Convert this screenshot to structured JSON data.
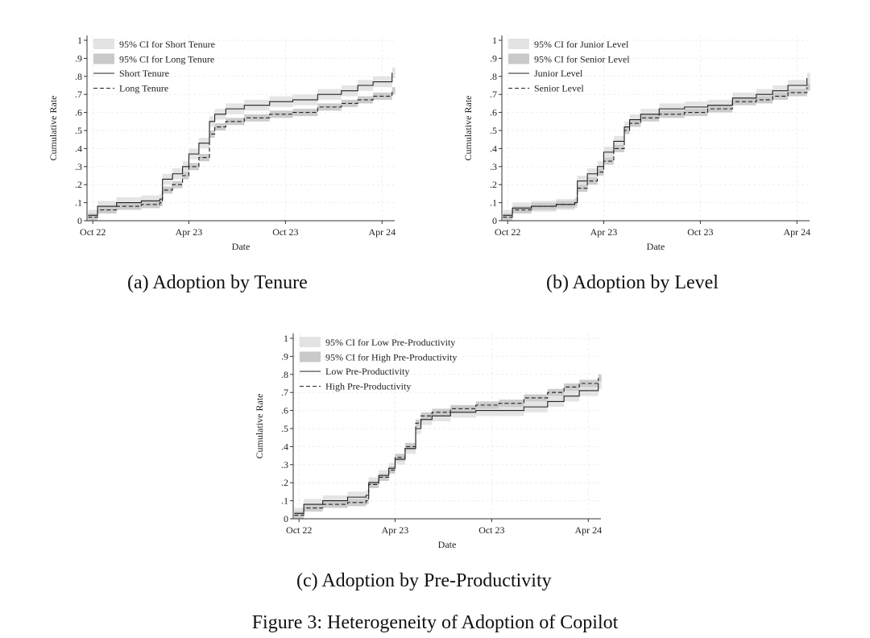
{
  "figure": {
    "title": "Figure 3: Heterogeneity of Adoption of Copilot"
  },
  "chart_data": [
    {
      "id": "a",
      "type": "line",
      "caption": "(a) Adoption by Tenure",
      "xlabel": "Date",
      "ylabel": "Cumulative Rate",
      "xticks": [
        "Oct 22",
        "Apr 23",
        "Oct 23",
        "Apr 24"
      ],
      "yticks": [
        "0",
        ".1",
        ".2",
        ".3",
        ".4",
        ".5",
        ".6",
        ".7",
        ".8",
        ".9",
        "1"
      ],
      "ylim": [
        0,
        1
      ],
      "xlim": [
        "2022-09-20",
        "2024-04-25"
      ],
      "grid": true,
      "legend_position": "top-left",
      "x": [
        "2022-09-22",
        "2022-10-10",
        "2022-11-15",
        "2023-01-01",
        "2023-02-05",
        "2023-02-10",
        "2023-03-01",
        "2023-03-20",
        "2023-04-01",
        "2023-04-20",
        "2023-05-10",
        "2023-05-20",
        "2023-06-10",
        "2023-07-15",
        "2023-09-01",
        "2023-10-15",
        "2023-12-01",
        "2024-01-15",
        "2024-02-15",
        "2024-03-15",
        "2024-04-20"
      ],
      "series": [
        {
          "name": "Short Tenure",
          "style": "solid",
          "values": [
            0.03,
            0.08,
            0.1,
            0.11,
            0.12,
            0.23,
            0.26,
            0.3,
            0.37,
            0.43,
            0.55,
            0.59,
            0.62,
            0.64,
            0.66,
            0.67,
            0.7,
            0.72,
            0.75,
            0.77,
            0.82
          ]
        },
        {
          "name": "Long Tenure",
          "style": "dashed",
          "values": [
            0.02,
            0.06,
            0.08,
            0.09,
            0.1,
            0.17,
            0.2,
            0.25,
            0.3,
            0.35,
            0.48,
            0.52,
            0.55,
            0.57,
            0.59,
            0.6,
            0.63,
            0.65,
            0.67,
            0.69,
            0.72
          ]
        }
      ],
      "ci": [
        {
          "name": "95% CI for Short Tenure",
          "fill": "#e3e3e3",
          "halfwidth": 0.03
        },
        {
          "name": "95% CI for Long Tenure",
          "fill": "#c9c9c9",
          "halfwidth": 0.02
        }
      ]
    },
    {
      "id": "b",
      "type": "line",
      "caption": "(b) Adoption by Level",
      "xlabel": "Date",
      "ylabel": "Cumulative Rate",
      "xticks": [
        "Oct 22",
        "Apr 23",
        "Oct 23",
        "Apr 24"
      ],
      "yticks": [
        "0",
        ".1",
        ".2",
        ".3",
        ".4",
        ".5",
        ".6",
        ".7",
        ".8",
        ".9",
        "1"
      ],
      "ylim": [
        0,
        1
      ],
      "xlim": [
        "2022-09-20",
        "2024-04-25"
      ],
      "grid": true,
      "legend_position": "top-left",
      "x": [
        "2022-09-22",
        "2022-10-10",
        "2022-11-15",
        "2023-01-01",
        "2023-02-05",
        "2023-02-10",
        "2023-03-01",
        "2023-03-20",
        "2023-04-01",
        "2023-04-20",
        "2023-05-10",
        "2023-05-20",
        "2023-06-10",
        "2023-07-15",
        "2023-09-01",
        "2023-10-15",
        "2023-12-01",
        "2024-01-15",
        "2024-02-15",
        "2024-03-15",
        "2024-04-20"
      ],
      "series": [
        {
          "name": "Junior Level",
          "style": "solid",
          "values": [
            0.03,
            0.07,
            0.08,
            0.09,
            0.1,
            0.22,
            0.26,
            0.3,
            0.38,
            0.44,
            0.52,
            0.56,
            0.59,
            0.62,
            0.63,
            0.64,
            0.68,
            0.7,
            0.72,
            0.75,
            0.79
          ]
        },
        {
          "name": "Senior Level",
          "style": "dashed",
          "values": [
            0.02,
            0.06,
            0.08,
            0.09,
            0.1,
            0.18,
            0.22,
            0.27,
            0.33,
            0.4,
            0.5,
            0.54,
            0.57,
            0.59,
            0.6,
            0.62,
            0.66,
            0.67,
            0.69,
            0.71,
            0.74
          ]
        }
      ],
      "ci": [
        {
          "name": "95% CI for Junior Level",
          "fill": "#e3e3e3",
          "halfwidth": 0.03
        },
        {
          "name": "95% CI for Senior Level",
          "fill": "#c9c9c9",
          "halfwidth": 0.02
        }
      ]
    },
    {
      "id": "c",
      "type": "line",
      "caption": "(c) Adoption by Pre-Productivity",
      "xlabel": "Date",
      "ylabel": "Cumulative Rate",
      "xticks": [
        "Oct 22",
        "Apr 23",
        "Oct 23",
        "Apr 24"
      ],
      "yticks": [
        "0",
        ".1",
        ".2",
        ".3",
        ".4",
        ".5",
        ".6",
        ".7",
        ".8",
        ".9",
        "1"
      ],
      "ylim": [
        0,
        1
      ],
      "xlim": [
        "2022-09-20",
        "2024-04-25"
      ],
      "grid": true,
      "legend_position": "top-left",
      "x": [
        "2022-09-22",
        "2022-10-10",
        "2022-11-15",
        "2023-01-01",
        "2023-02-05",
        "2023-02-10",
        "2023-03-01",
        "2023-03-20",
        "2023-04-01",
        "2023-04-20",
        "2023-05-10",
        "2023-05-20",
        "2023-06-10",
        "2023-07-15",
        "2023-09-01",
        "2023-10-15",
        "2023-12-01",
        "2024-01-15",
        "2024-02-15",
        "2024-03-15",
        "2024-04-20"
      ],
      "series": [
        {
          "name": "Low Pre-Productivity",
          "style": "solid",
          "values": [
            0.03,
            0.08,
            0.1,
            0.12,
            0.13,
            0.2,
            0.24,
            0.28,
            0.33,
            0.39,
            0.5,
            0.55,
            0.57,
            0.59,
            0.6,
            0.6,
            0.62,
            0.65,
            0.68,
            0.71,
            0.75
          ]
        },
        {
          "name": "High Pre-Productivity",
          "style": "dashed",
          "values": [
            0.02,
            0.06,
            0.08,
            0.09,
            0.1,
            0.19,
            0.23,
            0.27,
            0.34,
            0.4,
            0.53,
            0.57,
            0.59,
            0.61,
            0.63,
            0.64,
            0.67,
            0.7,
            0.73,
            0.75,
            0.78
          ]
        }
      ],
      "ci": [
        {
          "name": "95% CI for Low Pre-Productivity",
          "fill": "#e3e3e3",
          "halfwidth": 0.03
        },
        {
          "name": "95% CI for High Pre-Productivity",
          "fill": "#c9c9c9",
          "halfwidth": 0.02
        }
      ]
    }
  ]
}
